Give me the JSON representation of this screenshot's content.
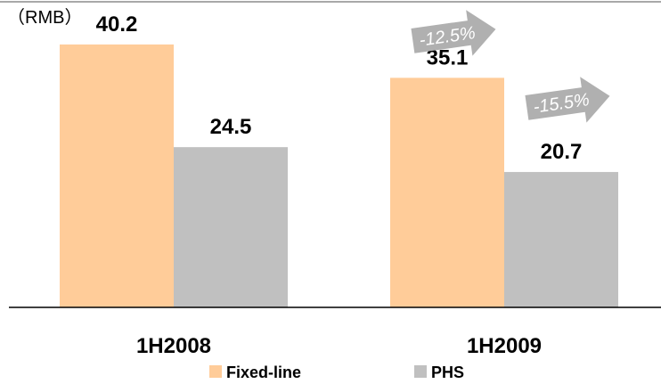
{
  "chart_data": {
    "type": "bar",
    "unit_label": "（RMB）",
    "categories": [
      "1H2008",
      "1H2009"
    ],
    "series": [
      {
        "name": "Fixed-line",
        "color": "#FFCC99",
        "values": [
          40.2,
          35.1
        ]
      },
      {
        "name": "PHS",
        "color": "#C0C0C0",
        "values": [
          24.5,
          20.7
        ]
      }
    ],
    "value_labels": [
      [
        "40.2",
        "35.1"
      ],
      [
        "24.5",
        "20.7"
      ]
    ],
    "ylim": [
      0,
      47
    ],
    "grid": false,
    "legend_position": "bottom",
    "annotations": [
      {
        "text": "-12.5%",
        "series": "Fixed-line",
        "category": "1H2009",
        "color": "#B0B0B0"
      },
      {
        "text": "-15.5%",
        "series": "PHS",
        "category": "1H2009",
        "color": "#B0B0B0"
      }
    ]
  }
}
